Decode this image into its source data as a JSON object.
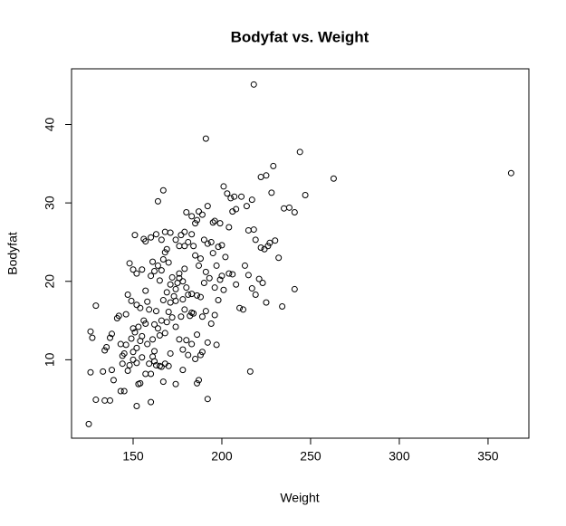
{
  "chart_data": {
    "type": "scatter",
    "title": "Bodyfat vs. Weight",
    "x_label": "Weight",
    "y_label": "Bodyfat",
    "xlim": [
      115.3,
      373
    ],
    "ylim": [
      0,
      47.1
    ],
    "xticks": [
      150,
      200,
      250,
      300,
      350
    ],
    "yticks": [
      10,
      20,
      30,
      40
    ],
    "marker_color": "#000000",
    "points": [
      [
        125,
        1.8
      ],
      [
        129,
        4.9
      ],
      [
        134,
        4.8
      ],
      [
        137,
        4.8
      ],
      [
        126,
        8.4
      ],
      [
        133,
        8.5
      ],
      [
        138,
        8.7
      ],
      [
        139,
        7.4
      ],
      [
        127,
        12.8
      ],
      [
        126,
        13.6
      ],
      [
        129,
        16.9
      ],
      [
        134,
        11.2
      ],
      [
        135,
        11.6
      ],
      [
        137,
        12.8
      ],
      [
        138,
        13.3
      ],
      [
        141,
        15.3
      ],
      [
        142,
        15.6
      ],
      [
        143,
        12
      ],
      [
        146,
        11.9
      ],
      [
        144,
        10.5
      ],
      [
        145,
        10.8
      ],
      [
        143,
        6
      ],
      [
        145,
        6
      ],
      [
        148,
        9.3
      ],
      [
        147,
        8.6
      ],
      [
        150,
        10
      ],
      [
        152,
        9.6
      ],
      [
        149,
        12.7
      ],
      [
        150,
        14
      ],
      [
        151,
        13.5
      ],
      [
        152,
        4.1
      ],
      [
        153,
        6.9
      ],
      [
        154,
        7
      ],
      [
        152,
        11.5
      ],
      [
        153,
        14.2
      ],
      [
        154,
        12.4
      ],
      [
        155,
        13
      ],
      [
        156,
        15
      ],
      [
        157,
        14.6
      ],
      [
        158,
        12
      ],
      [
        160,
        4.6
      ],
      [
        160,
        8.2
      ],
      [
        161,
        10.4
      ],
      [
        162,
        9.8
      ],
      [
        163,
        9.3
      ],
      [
        165,
        9.2
      ],
      [
        166,
        9.1
      ],
      [
        167,
        7.2
      ],
      [
        168,
        9.5
      ],
      [
        161,
        12.6
      ],
      [
        162,
        11.1
      ],
      [
        164,
        14
      ],
      [
        165,
        13.1
      ],
      [
        166,
        15
      ],
      [
        168,
        13.4
      ],
      [
        169,
        14.8
      ],
      [
        170,
        16.1
      ],
      [
        171,
        17.3
      ],
      [
        172,
        15.4
      ],
      [
        173,
        18.1
      ],
      [
        174,
        19
      ],
      [
        175,
        19.8
      ],
      [
        176,
        20.4
      ],
      [
        178,
        20
      ],
      [
        179,
        21.6
      ],
      [
        180,
        19.2
      ],
      [
        181,
        18.3
      ],
      [
        147,
        18.3
      ],
      [
        149,
        17.5
      ],
      [
        148,
        22.3
      ],
      [
        150,
        21.5
      ],
      [
        152,
        21
      ],
      [
        155,
        21.5
      ],
      [
        157,
        18.8
      ],
      [
        158,
        17.4
      ],
      [
        159,
        16.4
      ],
      [
        160,
        20.7
      ],
      [
        161,
        22.5
      ],
      [
        162,
        21.3
      ],
      [
        164,
        22
      ],
      [
        165,
        20.1
      ],
      [
        166,
        21.4
      ],
      [
        167,
        22.8
      ],
      [
        168,
        23.7
      ],
      [
        169,
        24.1
      ],
      [
        170,
        22.4
      ],
      [
        151,
        25.9
      ],
      [
        156,
        25.4
      ],
      [
        157,
        25.1
      ],
      [
        160,
        25.6
      ],
      [
        163,
        26
      ],
      [
        166,
        25.3
      ],
      [
        168,
        26.3
      ],
      [
        171,
        26.2
      ],
      [
        164,
        30.2
      ],
      [
        167,
        31.6
      ],
      [
        174,
        25.3
      ],
      [
        176,
        24.5
      ],
      [
        177,
        25.9
      ],
      [
        179,
        24.5
      ],
      [
        180,
        28.8
      ],
      [
        183,
        26
      ],
      [
        185,
        27.4
      ],
      [
        186,
        27.8
      ],
      [
        187,
        28.9
      ],
      [
        189,
        28.5
      ],
      [
        192,
        29.6
      ],
      [
        195,
        27.5
      ],
      [
        196,
        27.7
      ],
      [
        199,
        27.4
      ],
      [
        201,
        32.1
      ],
      [
        203,
        31.2
      ],
      [
        205,
        30.6
      ],
      [
        207,
        30.8
      ],
      [
        208,
        29.2
      ],
      [
        211,
        30.8
      ],
      [
        214,
        29.6
      ],
      [
        217,
        30.4
      ],
      [
        215,
        26.5
      ],
      [
        218,
        26.6
      ],
      [
        219,
        25.3
      ],
      [
        222,
        24.3
      ],
      [
        224,
        24.1
      ],
      [
        227,
        24.9
      ],
      [
        230,
        25.2
      ],
      [
        232,
        23
      ],
      [
        235,
        29.3
      ],
      [
        241,
        28.8
      ],
      [
        234,
        16.8
      ],
      [
        241,
        19
      ],
      [
        225,
        17.3
      ],
      [
        216,
        8.5
      ],
      [
        215,
        20.8
      ],
      [
        217,
        19.1
      ],
      [
        219,
        18.3
      ],
      [
        221,
        20.3
      ],
      [
        223,
        19.8
      ],
      [
        210,
        16.6
      ],
      [
        212,
        16.4
      ],
      [
        204,
        21
      ],
      [
        206,
        20.9
      ],
      [
        208,
        19.6
      ],
      [
        200,
        20.7
      ],
      [
        201,
        18.9
      ],
      [
        198,
        17.6
      ],
      [
        196,
        15.7
      ],
      [
        194,
        14.6
      ],
      [
        192,
        12.2
      ],
      [
        197,
        11.9
      ],
      [
        192,
        5
      ],
      [
        186,
        7
      ],
      [
        187,
        7.4
      ],
      [
        185,
        10.1
      ],
      [
        188,
        10.6
      ],
      [
        189,
        11
      ],
      [
        183,
        12
      ],
      [
        182,
        15.6
      ],
      [
        180,
        12.5
      ],
      [
        178,
        11.3
      ],
      [
        176,
        12.6
      ],
      [
        177,
        15.5
      ],
      [
        174,
        14.2
      ],
      [
        183,
        16
      ],
      [
        184,
        15.9
      ],
      [
        186,
        18.2
      ],
      [
        188,
        18
      ],
      [
        190,
        19.8
      ],
      [
        191,
        21.2
      ],
      [
        193,
        20.4
      ],
      [
        195,
        23.6
      ],
      [
        197,
        22
      ],
      [
        198,
        24.4
      ],
      [
        200,
        24.6
      ],
      [
        202,
        23.1
      ],
      [
        204,
        26.9
      ],
      [
        206,
        28.9
      ],
      [
        184,
        24.5
      ],
      [
        185,
        23.3
      ],
      [
        187,
        22
      ],
      [
        188,
        22.9
      ],
      [
        190,
        25.3
      ],
      [
        192,
        24.8
      ],
      [
        194,
        25
      ],
      [
        179,
        26.3
      ],
      [
        181,
        25
      ],
      [
        183,
        28.3
      ],
      [
        176,
        21
      ],
      [
        172,
        20.5
      ],
      [
        171,
        19.6
      ],
      [
        174,
        17.5
      ],
      [
        178,
        17.7
      ],
      [
        179,
        16.4
      ],
      [
        169,
        18.6
      ],
      [
        167,
        17.6
      ],
      [
        183,
        18.4
      ],
      [
        191,
        16.2
      ],
      [
        213,
        22
      ],
      [
        226,
        24.5
      ],
      [
        174,
        6.9
      ],
      [
        170,
        9.2
      ],
      [
        159,
        9.5
      ],
      [
        157,
        8.2
      ],
      [
        155,
        10.3
      ],
      [
        144,
        9.5
      ],
      [
        150,
        11
      ],
      [
        146,
        15.8
      ],
      [
        152,
        17
      ],
      [
        154,
        16.6
      ],
      [
        178,
        8.7
      ],
      [
        181,
        10.6
      ],
      [
        186,
        13.2
      ],
      [
        189,
        15.5
      ],
      [
        196,
        19.2
      ],
      [
        199,
        20.2
      ],
      [
        171,
        10.8
      ],
      [
        163,
        16.2
      ],
      [
        162,
        14.5
      ],
      [
        218,
        45.1
      ],
      [
        191,
        38.2
      ],
      [
        244,
        36.5
      ],
      [
        363,
        33.8
      ],
      [
        263,
        33.1
      ],
      [
        229,
        34.7
      ],
      [
        225,
        33.5
      ],
      [
        222,
        33.3
      ],
      [
        247,
        31
      ],
      [
        228,
        31.3
      ],
      [
        238,
        29.4
      ]
    ]
  }
}
